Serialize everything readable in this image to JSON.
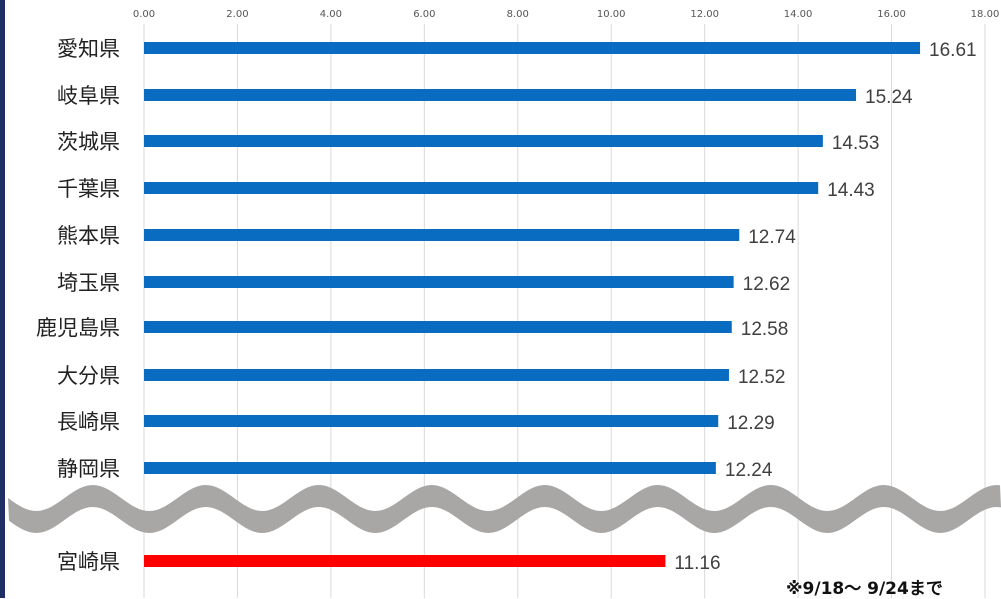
{
  "chart_data": {
    "type": "bar",
    "orientation": "horizontal",
    "categories": [
      "愛知県",
      "岐阜県",
      "茨城県",
      "千葉県",
      "熊本県",
      "埼玉県",
      "鹿児島県",
      "大分県",
      "長崎県",
      "静岡県",
      "宮崎県"
    ],
    "values": [
      16.61,
      15.24,
      14.53,
      14.43,
      12.74,
      12.62,
      12.58,
      12.52,
      12.29,
      12.24,
      11.16
    ],
    "value_labels": [
      "16.61",
      "15.24",
      "14.53",
      "14.43",
      "12.74",
      "12.62",
      "12.58",
      "12.52",
      "12.29",
      "12.24",
      "11.16"
    ],
    "bar_colors": [
      "#0a6cc0",
      "#0a6cc0",
      "#0a6cc0",
      "#0a6cc0",
      "#0a6cc0",
      "#0a6cc0",
      "#0a6cc0",
      "#0a6cc0",
      "#0a6cc0",
      "#0a6cc0",
      "#ff0000"
    ],
    "xlim": [
      0,
      18
    ],
    "ticks": [
      "0.00",
      "2.00",
      "4.00",
      "6.00",
      "8.00",
      "10.00",
      "12.00",
      "14.00",
      "16.00",
      "18.00"
    ],
    "axis_position": "top",
    "grid": true,
    "axis_break": "wavy band between 静岡県 and 宮崎県",
    "title": "",
    "xlabel": "",
    "ylabel": ""
  },
  "footnote": "※9/18～ 9/24まで",
  "colors": {
    "bar": "#0a6cc0",
    "highlight": "#ff0000",
    "break_band": "#a9a6a6",
    "grid": "#d9d9d9",
    "frame": "#1f2f66",
    "text": "#404040"
  }
}
